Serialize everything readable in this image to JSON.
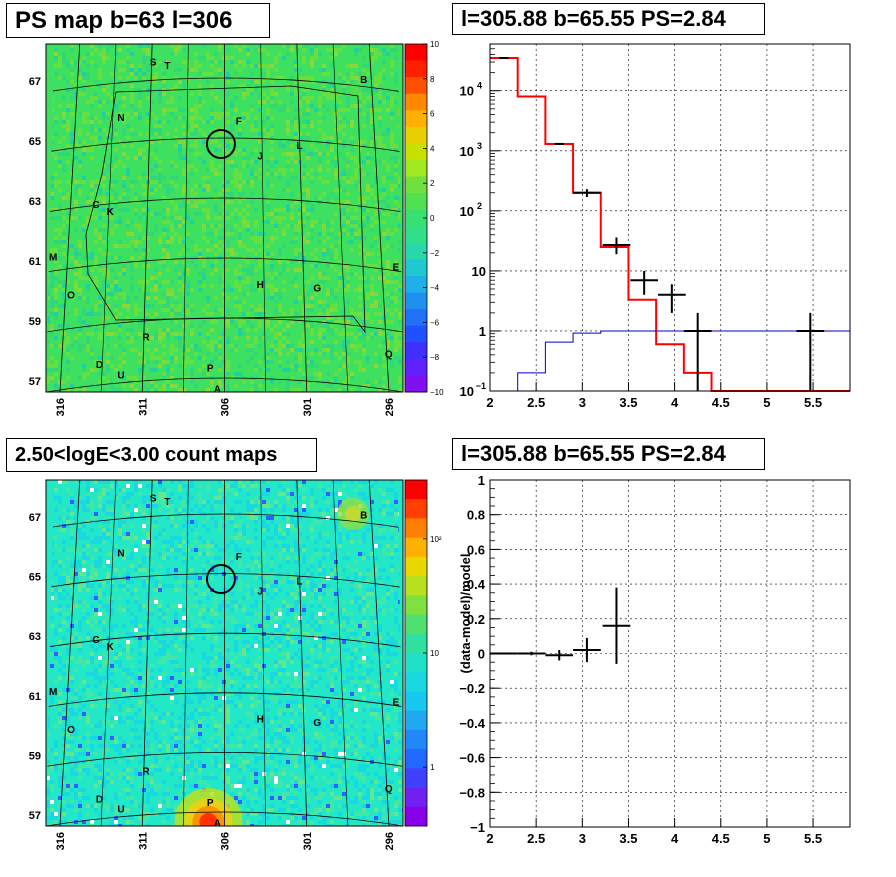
{
  "panels": {
    "top_left_title": "PS map b=63 l=306",
    "top_right_title": "l=305.88 b=65.55 PS=2.84",
    "bottom_left_title": "2.50<logE<3.00 count maps",
    "bottom_right_title": "l=305.88 b=65.55 PS=2.84"
  },
  "colors": {
    "frame": "#000000",
    "grid": "#000000",
    "data_hist": "#ff0000",
    "model_line": "#0000cc",
    "ps_map_fill": "#3ee060",
    "count_map_fill": "#22e8c8"
  },
  "chart_data": [
    {
      "type": "heatmap",
      "title": "PS map b=63 l=306",
      "lat_ticks": [
        "67",
        "65",
        "63",
        "61",
        "59",
        "57"
      ],
      "lon_ticks": [
        "316",
        "311",
        "306",
        "301",
        "296"
      ],
      "colorbar_ticks": [
        "10",
        "8",
        "6",
        "4",
        "2",
        "0",
        "−2",
        "−4",
        "−6",
        "−8",
        "−10"
      ],
      "colorbar_range": [
        -10,
        10
      ],
      "source_labels": [
        "S",
        "T",
        "B",
        "N",
        "F",
        "J",
        "L",
        "C",
        "K",
        "M",
        "E",
        "H",
        "G",
        "O",
        "R",
        "Q",
        "D",
        "U",
        "P",
        "A"
      ]
    },
    {
      "type": "line",
      "title": "l=305.88 b=65.55 PS=2.84",
      "xlim": [
        2,
        5.9
      ],
      "ylim": [
        0.1,
        60000
      ],
      "yscale": "log",
      "x_ticks": [
        "2",
        "2.5",
        "3",
        "3.5",
        "4",
        "4.5",
        "5",
        "5.5"
      ],
      "grid": true,
      "series": [
        {
          "values": [
            {
              "x0": 2.0,
              "x1": 2.3,
              "y": 35000
            },
            {
              "x0": 2.3,
              "x1": 2.6,
              "y": 8000
            },
            {
              "x0": 2.6,
              "x1": 2.9,
              "y": 1300
            },
            {
              "x0": 2.9,
              "x1": 3.2,
              "y": 200
            },
            {
              "x0": 3.2,
              "x1": 3.5,
              "y": 25
            },
            {
              "x0": 3.5,
              "x1": 3.8,
              "y": 3.3
            },
            {
              "x0": 3.8,
              "x1": 4.1,
              "y": 0.6
            },
            {
              "x0": 4.1,
              "x1": 4.4,
              "y": 0.2
            },
            {
              "x0": 4.4,
              "x1": 5.9,
              "y": 0.1
            }
          ]
        },
        {
          "values": [
            {
              "x0": 2.3,
              "x1": 2.6,
              "y": 0.2
            },
            {
              "x0": 2.6,
              "x1": 2.9,
              "y": 0.65
            },
            {
              "x0": 2.9,
              "x1": 3.2,
              "y": 0.92
            },
            {
              "x0": 3.2,
              "x1": 5.9,
              "y": 1.0
            }
          ]
        }
      ],
      "points": [
        {
          "x": 2.15,
          "y": 35000,
          "xerr": 0.05,
          "ylo": 35000,
          "yhi": 35000
        },
        {
          "x": 2.45,
          "y": 8000,
          "xerr": 0.0,
          "ylo": 8000,
          "yhi": 8000
        },
        {
          "x": 2.75,
          "y": 1300,
          "xerr": 0.05,
          "ylo": 1300,
          "yhi": 1300
        },
        {
          "x": 3.05,
          "y": 200,
          "xerr": 0.15,
          "ylo": 170,
          "yhi": 230
        },
        {
          "x": 3.37,
          "y": 27,
          "xerr": 0.15,
          "ylo": 19,
          "yhi": 36
        },
        {
          "x": 3.67,
          "y": 7,
          "xerr": 0.15,
          "ylo": 4,
          "yhi": 10
        },
        {
          "x": 3.97,
          "y": 4,
          "xerr": 0.15,
          "ylo": 2,
          "yhi": 6
        },
        {
          "x": 4.25,
          "y": 1,
          "xerr": 0.15,
          "ylo": 0.1,
          "yhi": 2
        },
        {
          "x": 5.47,
          "y": 1,
          "xerr": 0.15,
          "ylo": 0.1,
          "yhi": 2
        }
      ]
    },
    {
      "type": "heatmap",
      "title": "2.50<logE<3.00 count maps",
      "lat_ticks": [
        "67",
        "65",
        "63",
        "61",
        "59",
        "57"
      ],
      "lon_ticks": [
        "316",
        "311",
        "306",
        "301",
        "296"
      ],
      "colorbar_ticks": [
        "10²",
        "10",
        "1"
      ],
      "source_labels": [
        "S",
        "T",
        "B",
        "N",
        "F",
        "J",
        "L",
        "C",
        "K",
        "M",
        "E",
        "H",
        "G",
        "O",
        "R",
        "Q",
        "D",
        "U",
        "P",
        "A"
      ]
    },
    {
      "type": "scatter",
      "title": "l=305.88 b=65.55 PS=2.84",
      "ylabel": "(data-model)/model",
      "xlim": [
        2,
        5.9
      ],
      "ylim": [
        -1,
        1
      ],
      "x_ticks": [
        "2",
        "2.5",
        "3",
        "3.5",
        "4",
        "4.5",
        "5",
        "5.5"
      ],
      "y_ticks": [
        "1",
        "0.8",
        "0.6",
        "0.4",
        "0.2",
        "0",
        "−0.2",
        "−0.4",
        "−0.6",
        "−0.8",
        "−1"
      ],
      "grid": true,
      "points": [
        {
          "x": 2.15,
          "y": 0.0,
          "xerr": 0.15,
          "yerr": 0.0
        },
        {
          "x": 2.45,
          "y": 0.0,
          "xerr": 0.15,
          "yerr": 0.01
        },
        {
          "x": 2.75,
          "y": -0.01,
          "xerr": 0.15,
          "yerr": 0.03
        },
        {
          "x": 3.05,
          "y": 0.02,
          "xerr": 0.15,
          "yerr": 0.07
        },
        {
          "x": 3.37,
          "y": 0.16,
          "xerr": 0.15,
          "yerr": 0.22
        }
      ]
    }
  ]
}
